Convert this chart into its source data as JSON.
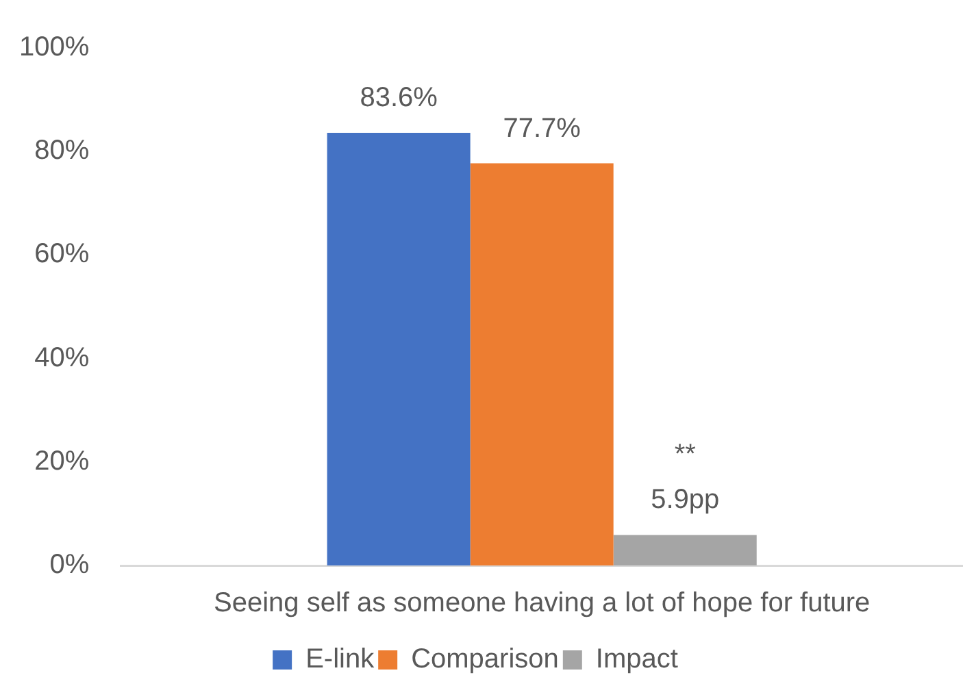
{
  "chart_data": {
    "type": "bar",
    "categories": [
      "Seeing self as someone having a lot of hope for future"
    ],
    "series": [
      {
        "name": "E-link",
        "color": "#4472c4",
        "values": [
          83.6
        ],
        "value_labels": [
          "83.6%"
        ]
      },
      {
        "name": "Comparison",
        "color": "#ed7d31",
        "values": [
          77.7
        ],
        "value_labels": [
          "77.7%"
        ]
      },
      {
        "name": "Impact",
        "color": "#a5a5a5",
        "values": [
          5.9
        ],
        "value_labels": [
          "5.9pp"
        ]
      }
    ],
    "ylim": [
      0,
      100
    ],
    "yticks": [
      {
        "value": 0,
        "label": "0%"
      },
      {
        "value": 20,
        "label": "20%"
      },
      {
        "value": 40,
        "label": "40%"
      },
      {
        "value": 60,
        "label": "60%"
      },
      {
        "value": 80,
        "label": "80%"
      },
      {
        "value": 100,
        "label": "100%"
      }
    ],
    "grid": false,
    "legend": "bottom",
    "annotations": [
      "**"
    ]
  }
}
